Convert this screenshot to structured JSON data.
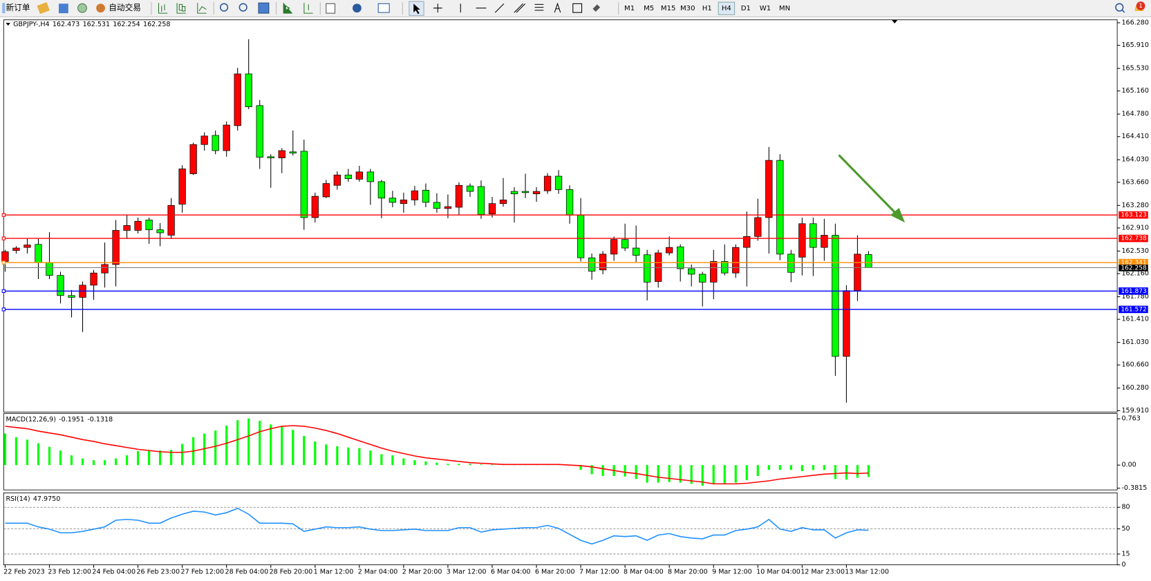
{
  "toolbar": {
    "new_order": "新订单",
    "auto_trading": "自动交易",
    "timeframes": [
      "M1",
      "M5",
      "M15",
      "M30",
      "H1",
      "H4",
      "D1",
      "W1",
      "MN"
    ],
    "active_timeframe": 5,
    "notifications": 1
  },
  "chart_data": [
    {
      "type": "candlestick",
      "title": "GBPJPY-,H4",
      "categories": [
        "22 Feb 2023",
        null,
        null,
        null,
        "23 Feb 12:00",
        null,
        null,
        null,
        "24 Feb 04:00",
        null,
        null,
        null,
        "26 Feb 23:00",
        null,
        null,
        null,
        "27 Feb 12:00",
        null,
        null,
        null,
        "28 Feb 04:00",
        null,
        null,
        null,
        "28 Feb 20:00",
        null,
        null,
        null,
        "1 Mar 12:00",
        null,
        null,
        null,
        "2 Mar 04:00",
        null,
        null,
        null,
        "2 Mar 20:00",
        null,
        null,
        null,
        "3 Mar 12:00",
        null,
        null,
        null,
        "6 Mar 04:00",
        null,
        null,
        null,
        "6 Mar 20:00",
        null,
        null,
        null,
        "7 Mar 12:00",
        null,
        null,
        null,
        "8 Mar 04:00",
        null,
        null,
        null,
        "8 Mar 20:00",
        null,
        null,
        null,
        "9 Mar 12:00",
        null,
        null,
        null,
        "10 Mar 04:00",
        null,
        null,
        null,
        "12 Mar 23:00",
        null,
        null,
        null,
        "13 Mar 12:00",
        null,
        null
      ],
      "open": [
        162.36,
        162.54,
        162.59,
        162.64,
        162.34,
        162.13,
        161.8,
        161.77,
        161.97,
        162.17,
        162.31,
        162.87,
        162.87,
        163.04,
        162.88,
        162.79,
        163.3,
        163.8,
        164.28,
        164.43,
        164.18,
        164.59,
        165.44,
        164.92,
        164.08,
        164.06,
        164.16,
        164.17,
        163.08,
        163.42,
        163.61,
        163.78,
        163.71,
        163.83,
        163.67,
        163.4,
        163.31,
        163.37,
        163.53,
        163.33,
        163.23,
        163.25,
        163.6,
        163.59,
        163.14,
        163.31,
        163.51,
        163.51,
        163.47,
        163.52,
        163.76,
        163.54,
        163.12,
        162.42,
        162.22,
        162.48,
        162.72,
        162.58,
        162.47,
        162.03,
        162.5,
        162.6,
        162.24,
        162.15,
        162.02,
        162.36,
        162.17,
        162.59,
        162.77,
        163.08,
        164.02,
        162.48,
        162.43,
        162.98,
        162.59,
        162.79,
        160.8,
        161.88,
        162.473
      ],
      "high": [
        162.55,
        162.61,
        162.73,
        162.73,
        162.84,
        162.19,
        161.89,
        162.03,
        162.22,
        162.67,
        163.04,
        163.12,
        163.08,
        163.08,
        162.99,
        163.4,
        163.94,
        164.31,
        164.48,
        164.51,
        164.66,
        165.54,
        166.01,
        165.01,
        164.12,
        164.22,
        164.51,
        164.36,
        163.49,
        163.7,
        163.84,
        163.88,
        163.93,
        163.88,
        163.7,
        163.52,
        163.49,
        163.6,
        163.64,
        163.48,
        163.46,
        163.66,
        163.64,
        163.69,
        163.42,
        163.73,
        163.58,
        163.8,
        163.58,
        163.81,
        163.86,
        163.61,
        163.4,
        162.49,
        162.53,
        162.77,
        162.98,
        162.95,
        162.55,
        162.55,
        162.77,
        162.64,
        162.31,
        162.19,
        162.55,
        162.64,
        162.64,
        163.18,
        163.39,
        164.24,
        164.12,
        162.55,
        163.08,
        163.08,
        163.06,
        162.98,
        161.97,
        162.79,
        162.531
      ],
      "low": [
        162.19,
        162.49,
        162.49,
        162.07,
        162.07,
        161.67,
        161.44,
        161.2,
        161.73,
        161.93,
        161.95,
        162.73,
        162.82,
        162.65,
        162.61,
        162.73,
        163.16,
        163.78,
        164.18,
        164.12,
        164.08,
        164.51,
        164.86,
        163.88,
        163.57,
        163.81,
        164.1,
        162.88,
        163.0,
        163.4,
        163.54,
        163.67,
        163.67,
        163.29,
        163.07,
        163.25,
        163.16,
        163.28,
        163.25,
        163.16,
        163.07,
        163.13,
        163.42,
        163.06,
        163.08,
        163.26,
        163.0,
        163.4,
        163.34,
        163.47,
        163.47,
        162.98,
        162.36,
        162.06,
        162.15,
        162.37,
        162.53,
        162.35,
        161.72,
        161.93,
        162.46,
        162.03,
        161.95,
        161.62,
        161.74,
        162.13,
        162.09,
        161.95,
        162.7,
        162.49,
        162.38,
        162.02,
        162.13,
        162.12,
        162.37,
        160.48,
        160.04,
        161.71,
        162.254
      ],
      "close": [
        162.52,
        162.58,
        162.63,
        162.34,
        162.13,
        161.8,
        161.77,
        161.97,
        162.17,
        162.31,
        162.87,
        162.95,
        163.02,
        162.88,
        162.83,
        163.28,
        163.88,
        164.28,
        164.42,
        164.18,
        164.6,
        165.44,
        164.9,
        164.07,
        164.06,
        164.18,
        164.14,
        163.08,
        163.43,
        163.64,
        163.78,
        163.72,
        163.83,
        163.67,
        163.4,
        163.33,
        163.37,
        163.52,
        163.33,
        163.23,
        163.26,
        163.61,
        163.51,
        163.13,
        163.31,
        163.37,
        163.47,
        163.49,
        163.51,
        163.76,
        163.54,
        163.12,
        162.42,
        162.2,
        162.48,
        162.72,
        162.58,
        162.46,
        162.02,
        162.5,
        162.59,
        162.24,
        162.15,
        162.02,
        162.36,
        162.17,
        162.59,
        162.77,
        163.08,
        164.02,
        162.48,
        162.18,
        162.98,
        162.59,
        162.79,
        160.8,
        161.88,
        162.48,
        162.258
      ],
      "up_color": "#ff0000",
      "down_color": "#00ff00",
      "current_price_color": "#000000",
      "ylim": [
        159.886,
        166.328
      ],
      "yticks": [
        {
          "value": 166.28,
          "label": "166.280"
        },
        {
          "value": 165.91,
          "label": "165.910"
        },
        {
          "value": 165.53,
          "label": "165.530"
        },
        {
          "value": 165.16,
          "label": "165.160"
        },
        {
          "value": 164.78,
          "label": "164.780"
        },
        {
          "value": 164.41,
          "label": "164.410"
        },
        {
          "value": 164.03,
          "label": "164.030"
        },
        {
          "value": 163.66,
          "label": "163.660"
        },
        {
          "value": 163.28,
          "label": "163.280"
        },
        {
          "value": 162.91,
          "label": "162.910"
        },
        {
          "value": 162.53,
          "label": "162.530"
        },
        {
          "value": 162.16,
          "label": "162.160"
        },
        {
          "value": 161.78,
          "label": "161.780"
        },
        {
          "value": 161.41,
          "label": "161.410"
        },
        {
          "value": 161.03,
          "label": "161.030"
        },
        {
          "value": 160.66,
          "label": "160.660"
        },
        {
          "value": 160.28,
          "label": "160.280"
        },
        {
          "value": 159.91,
          "label": "159.910"
        }
      ],
      "levels": [
        {
          "value": 163.123,
          "color": "#ff0000"
        },
        {
          "value": 162.738,
          "color": "#ff0000"
        },
        {
          "value": 162.341,
          "color": "#ff8c00"
        },
        {
          "value": 161.873,
          "color": "#0000ff"
        },
        {
          "value": 161.572,
          "color": "#0000ff"
        }
      ]
    },
    {
      "type": "macd",
      "title": "MACD(12,26,9)",
      "series": [
        {
          "color": "#00ff00",
          "values": [
            0.52,
            0.46,
            0.42,
            0.36,
            0.3,
            0.24,
            0.16,
            0.11,
            0.08,
            0.08,
            0.11,
            0.16,
            0.23,
            0.24,
            0.24,
            0.25,
            0.35,
            0.46,
            0.52,
            0.57,
            0.65,
            0.74,
            0.77,
            0.73,
            0.67,
            0.64,
            0.58,
            0.48,
            0.39,
            0.34,
            0.31,
            0.29,
            0.28,
            0.24,
            0.18,
            0.16,
            0.11,
            0.08,
            0.06,
            0.04,
            0.02,
            0.02,
            0.02,
            0.01,
            0.01,
            0.01,
            0.01,
            0.01,
            0.01,
            0.01,
            0.01,
            -0.01,
            -0.08,
            -0.15,
            -0.18,
            -0.18,
            -0.19,
            -0.23,
            -0.29,
            -0.29,
            -0.28,
            -0.29,
            -0.31,
            -0.34,
            -0.31,
            -0.31,
            -0.29,
            -0.25,
            -0.18,
            -0.08,
            -0.08,
            -0.08,
            -0.1,
            -0.08,
            -0.08,
            -0.23,
            -0.24,
            -0.21,
            -0.1951
          ]
        },
        {
          "color": "#ff0000",
          "values": [
            0.64,
            0.62,
            0.6,
            0.56,
            0.53,
            0.5,
            0.46,
            0.42,
            0.39,
            0.35,
            0.32,
            0.29,
            0.26,
            0.24,
            0.22,
            0.21,
            0.21,
            0.23,
            0.27,
            0.31,
            0.36,
            0.42,
            0.48,
            0.55,
            0.6,
            0.64,
            0.65,
            0.64,
            0.61,
            0.57,
            0.52,
            0.46,
            0.4,
            0.34,
            0.28,
            0.23,
            0.19,
            0.15,
            0.12,
            0.1,
            0.08,
            0.06,
            0.04,
            0.03,
            0.02,
            0.01,
            0.01,
            0.01,
            0.01,
            0.01,
            0.01,
            0.0,
            -0.01,
            -0.03,
            -0.06,
            -0.09,
            -0.12,
            -0.14,
            -0.17,
            -0.2,
            -0.22,
            -0.24,
            -0.26,
            -0.28,
            -0.31,
            -0.31,
            -0.31,
            -0.3,
            -0.28,
            -0.26,
            -0.23,
            -0.21,
            -0.19,
            -0.17,
            -0.15,
            -0.14,
            -0.13,
            -0.14,
            -0.1318
          ]
        }
      ],
      "ylim": [
        -0.41,
        0.85
      ],
      "yticks": [
        0.763,
        {
          "value": 0,
          "label": "0.00"
        },
        -0.3815
      ]
    },
    {
      "type": "line",
      "title": "RSI(14)",
      "series": [
        {
          "color": "#1e90ff",
          "values": [
            57.9,
            57.9,
            57.9,
            52.7,
            49.6,
            44.5,
            44.5,
            46.5,
            49.6,
            52.7,
            62.0,
            63.1,
            62.0,
            57.9,
            57.9,
            65.1,
            70.3,
            74.5,
            73.4,
            69.3,
            72.4,
            78.6,
            70.3,
            57.9,
            57.9,
            57.9,
            56.9,
            46.5,
            49.6,
            52.7,
            51.7,
            51.7,
            52.7,
            49.6,
            47.6,
            47.6,
            48.6,
            49.6,
            47.6,
            47.6,
            47.6,
            51.7,
            51.7,
            45.5,
            48.6,
            49.6,
            50.6,
            51.7,
            51.7,
            54.8,
            50.6,
            42.4,
            34.1,
            29.0,
            34.1,
            40.3,
            39.3,
            40.3,
            34.1,
            41.4,
            43.4,
            39.3,
            37.2,
            36.2,
            41.4,
            41.4,
            47.6,
            49.6,
            52.7,
            63.1,
            49.6,
            46.5,
            51.7,
            48.6,
            48.6,
            37.2,
            44.5,
            48.6,
            47.975
          ],
          "value_labels": [
            null,
            null,
            null,
            null,
            null,
            null,
            null,
            null,
            null,
            null,
            null,
            null,
            null,
            null,
            null,
            null,
            null,
            null,
            null,
            null,
            null,
            null,
            null,
            null,
            null,
            null,
            null,
            null,
            null,
            null,
            null,
            null,
            null,
            null,
            null,
            null,
            null,
            null,
            null,
            null,
            null,
            null,
            null,
            null,
            null,
            null,
            null,
            null,
            null,
            null,
            null,
            null,
            null,
            null,
            null,
            null,
            null,
            null,
            null,
            null,
            null,
            null,
            null,
            null,
            null,
            null,
            null,
            null,
            null,
            null,
            null,
            null,
            null,
            null,
            null,
            null,
            null,
            null,
            "47.9750"
          ]
        }
      ],
      "ylim": [
        0,
        100
      ],
      "yticks": [
        80,
        50,
        15,
        0
      ],
      "levels": [
        80,
        50,
        15
      ]
    }
  ]
}
